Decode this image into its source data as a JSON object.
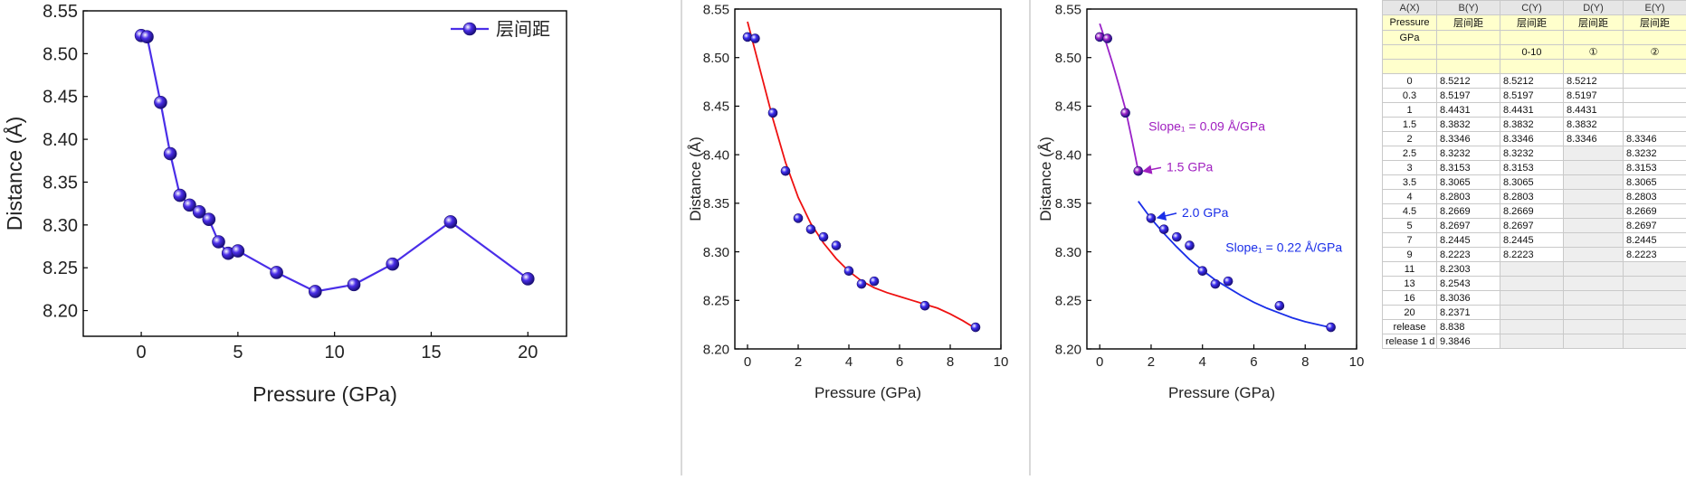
{
  "chart_data": [
    {
      "type": "line",
      "xlabel": "Pressure (GPa)",
      "ylabel": "Distance (Å)",
      "xlim": [
        -3,
        22
      ],
      "ylim": [
        8.17,
        8.55
      ],
      "x_ticks": [
        "0",
        "5",
        "10",
        "15",
        "20"
      ],
      "y_ticks": [
        "8.20",
        "8.25",
        "8.30",
        "8.35",
        "8.40",
        "8.45",
        "8.50",
        "8.55"
      ],
      "legend": "top-right",
      "series": [
        {
          "name": "层间距",
          "color": "#4a2ee8",
          "x": [
            0,
            0.3,
            1,
            1.5,
            2,
            2.5,
            3,
            3.5,
            4,
            4.5,
            5,
            7,
            9,
            11,
            13,
            16,
            20
          ],
          "y": [
            8.5212,
            8.5197,
            8.4431,
            8.3832,
            8.3346,
            8.3232,
            8.3153,
            8.3065,
            8.2803,
            8.2669,
            8.2697,
            8.2445,
            8.2223,
            8.2303,
            8.2543,
            8.3036,
            8.2371
          ]
        }
      ]
    },
    {
      "type": "scatter",
      "xlabel": "Pressure (GPa)",
      "ylabel": "Distance (Å)",
      "xlim": [
        -0.5,
        10
      ],
      "ylim": [
        8.2,
        8.55
      ],
      "x_ticks": [
        "0",
        "2",
        "4",
        "6",
        "8",
        "10"
      ],
      "y_ticks": [
        "8.20",
        "8.25",
        "8.30",
        "8.35",
        "8.40",
        "8.45",
        "8.50",
        "8.55"
      ],
      "series": [
        {
          "color": "#3b2df0",
          "x": [
            0,
            0.3,
            1,
            1.5,
            2,
            2.5,
            3,
            3.5,
            4,
            4.5,
            5,
            7,
            9
          ],
          "y": [
            8.5212,
            8.5197,
            8.4431,
            8.3832,
            8.3346,
            8.3232,
            8.3153,
            8.3065,
            8.2803,
            8.2669,
            8.2697,
            8.2445,
            8.2223
          ]
        }
      ],
      "fit_curve": {
        "color": "#ee1111",
        "x": [
          0,
          0.5,
          1,
          1.5,
          2,
          2.5,
          3,
          3.5,
          4,
          4.5,
          5,
          5.5,
          6,
          6.5,
          7,
          7.5,
          8,
          8.5,
          9
        ],
        "y": [
          8.537,
          8.487,
          8.437,
          8.392,
          8.356,
          8.329,
          8.309,
          8.293,
          8.28,
          8.27,
          8.263,
          8.258,
          8.254,
          8.25,
          8.246,
          8.242,
          8.236,
          8.229,
          8.221
        ]
      }
    },
    {
      "type": "scatter",
      "xlabel": "Pressure (GPa)",
      "ylabel": "Distance (Å)",
      "xlim": [
        -0.5,
        10
      ],
      "ylim": [
        8.2,
        8.55
      ],
      "x_ticks": [
        "0",
        "2",
        "4",
        "6",
        "8",
        "10"
      ],
      "y_ticks": [
        "8.20",
        "8.25",
        "8.30",
        "8.35",
        "8.40",
        "8.45",
        "8.50",
        "8.55"
      ],
      "series": [
        {
          "color": "#9a22c8",
          "x": [
            0,
            0.3,
            1,
            1.5
          ],
          "y": [
            8.5212,
            8.5197,
            8.4431,
            8.3832
          ]
        },
        {
          "color": "#3b2df0",
          "x": [
            2,
            2.5,
            3,
            3.5,
            4,
            4.5,
            5,
            7,
            9
          ],
          "y": [
            8.3346,
            8.3232,
            8.3153,
            8.3065,
            8.2803,
            8.2669,
            8.2697,
            8.2445,
            8.2223
          ]
        }
      ],
      "fit_curves": [
        {
          "color": "#9a22c8",
          "x": [
            0,
            0.25,
            0.5,
            0.75,
            1,
            1.25,
            1.5
          ],
          "y": [
            8.535,
            8.515,
            8.494,
            8.471,
            8.447,
            8.416,
            8.383
          ]
        },
        {
          "color": "#1a2ee8",
          "x": [
            1.5,
            2,
            2.5,
            3,
            3.5,
            4,
            4.5,
            5,
            5.5,
            6,
            6.5,
            7,
            7.5,
            8,
            8.5,
            9
          ],
          "y": [
            8.352,
            8.334,
            8.319,
            8.305,
            8.292,
            8.281,
            8.271,
            8.263,
            8.255,
            8.248,
            8.242,
            8.237,
            8.232,
            8.228,
            8.225,
            8.222
          ]
        }
      ],
      "annotations": [
        {
          "text": "Slope₁ = 0.09 Å/GPa",
          "x": 1.9,
          "y": 8.425,
          "color": "#a020c0"
        },
        {
          "text": "1.5 GPa",
          "x": 2.6,
          "y": 8.383,
          "color": "#a020c0",
          "arrow_to": [
            1.55,
            8.383
          ]
        },
        {
          "text": "2.0 GPa",
          "x": 3.2,
          "y": 8.336,
          "color": "#1a2ee8",
          "arrow_to": [
            2.1,
            8.335
          ]
        },
        {
          "text": "Slope₁ = 0.22 Å/GPa",
          "x": 4.9,
          "y": 8.3,
          "color": "#1a2ee8"
        }
      ]
    }
  ],
  "worksheet": {
    "columns": [
      "A(X)",
      "B(Y)",
      "C(Y)",
      "D(Y)",
      "E(Y)"
    ],
    "long_name": [
      "Pressure",
      "层间距",
      "层间距",
      "层间距",
      "层间距"
    ],
    "units": [
      "GPa",
      "",
      "",
      "",
      ""
    ],
    "comments": [
      "",
      "",
      "0-10",
      "①",
      "②"
    ],
    "sparkline": [
      "",
      "",
      "",
      "",
      ""
    ],
    "rows": [
      [
        "0",
        "8.5212",
        "8.5212",
        "8.5212",
        ""
      ],
      [
        "0.3",
        "8.5197",
        "8.5197",
        "8.5197",
        ""
      ],
      [
        "1",
        "8.4431",
        "8.4431",
        "8.4431",
        ""
      ],
      [
        "1.5",
        "8.3832",
        "8.3832",
        "8.3832",
        ""
      ],
      [
        "2",
        "8.3346",
        "8.3346",
        "8.3346",
        "8.3346"
      ],
      [
        "2.5",
        "8.3232",
        "8.3232",
        "",
        "8.3232"
      ],
      [
        "3",
        "8.3153",
        "8.3153",
        "",
        "8.3153"
      ],
      [
        "3.5",
        "8.3065",
        "8.3065",
        "",
        "8.3065"
      ],
      [
        "4",
        "8.2803",
        "8.2803",
        "",
        "8.2803"
      ],
      [
        "4.5",
        "8.2669",
        "8.2669",
        "",
        "8.2669"
      ],
      [
        "5",
        "8.2697",
        "8.2697",
        "",
        "8.2697"
      ],
      [
        "7",
        "8.2445",
        "8.2445",
        "",
        "8.2445"
      ],
      [
        "9",
        "8.2223",
        "8.2223",
        "",
        "8.2223"
      ],
      [
        "11",
        "8.2303",
        "",
        "",
        ""
      ],
      [
        "13",
        "8.2543",
        "",
        "",
        ""
      ],
      [
        "16",
        "8.3036",
        "",
        "",
        ""
      ],
      [
        "20",
        "8.2371",
        "",
        "",
        ""
      ],
      [
        "release",
        "8.838",
        "",
        "",
        ""
      ],
      [
        "release 1 d",
        "9.3846",
        "",
        "",
        ""
      ]
    ]
  }
}
